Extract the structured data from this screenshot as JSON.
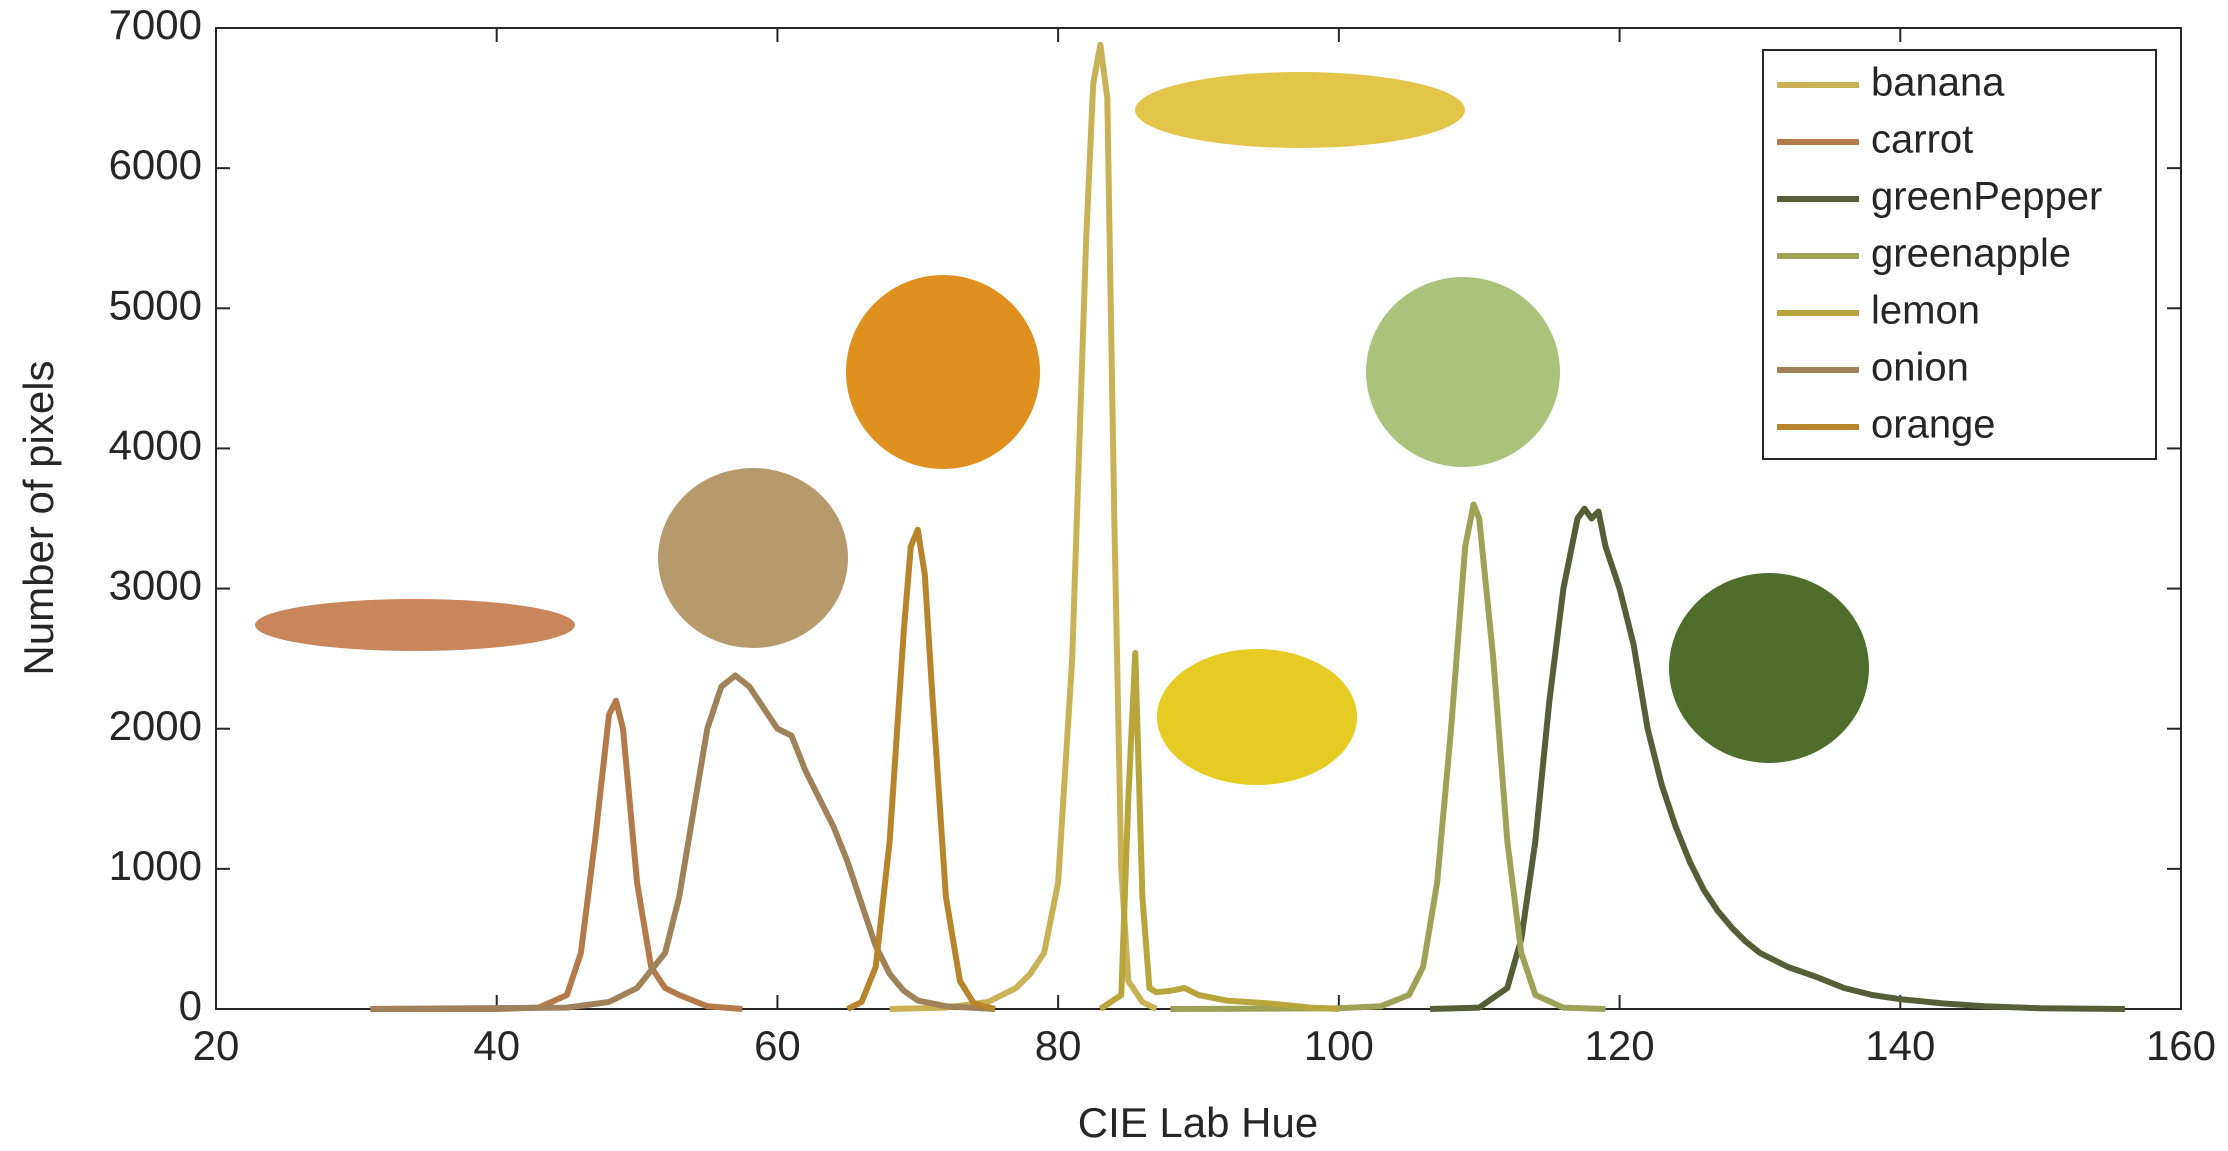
{
  "chart_data": {
    "type": "line",
    "x_label": "CIE Lab Hue",
    "y_label": "Number of pixels",
    "xlim": [
      20,
      160
    ],
    "xticks": [
      20,
      40,
      60,
      80,
      100,
      120,
      140,
      160
    ],
    "ylim": [
      0,
      7000
    ],
    "yticks": [
      0,
      1000,
      2000,
      3000,
      4000,
      5000,
      6000,
      7000
    ],
    "grid": false,
    "legend": "upper right",
    "series": [
      {
        "name": "banana",
        "color": "#c9b256",
        "x": [
          68,
          72,
          75,
          77,
          78,
          79,
          80,
          81,
          82,
          82.5,
          83,
          83.5,
          84,
          84.5,
          85,
          86,
          87
        ],
        "values": [
          0,
          10,
          50,
          150,
          250,
          400,
          900,
          2500,
          5500,
          6600,
          6880,
          6500,
          3500,
          1000,
          200,
          50,
          0
        ]
      },
      {
        "name": "carrot",
        "color": "#b47a4a",
        "x": [
          31,
          40,
          43,
          45,
          46,
          47,
          48,
          48.5,
          49,
          50,
          51,
          52,
          53,
          54,
          55,
          57.5
        ],
        "values": [
          0,
          0,
          10,
          100,
          400,
          1200,
          2100,
          2200,
          2000,
          900,
          300,
          150,
          100,
          60,
          20,
          0
        ]
      },
      {
        "name": "greenPepper",
        "color": "#555f37",
        "x": [
          106.5,
          110,
          112,
          113,
          114,
          115,
          116,
          117,
          117.5,
          118,
          118.5,
          119,
          120,
          121,
          122,
          123,
          124,
          125,
          126,
          127,
          128,
          129,
          130,
          132,
          134,
          136,
          138,
          140,
          143,
          146,
          150,
          156
        ],
        "values": [
          0,
          10,
          150,
          500,
          1200,
          2200,
          3000,
          3500,
          3570,
          3500,
          3550,
          3300,
          3000,
          2600,
          2000,
          1600,
          1300,
          1050,
          850,
          700,
          580,
          480,
          400,
          300,
          230,
          150,
          100,
          70,
          40,
          20,
          5,
          0
        ]
      },
      {
        "name": "greenapple",
        "color": "#9ea256",
        "x": [
          88,
          100,
          103,
          105,
          106,
          107,
          108,
          109,
          109.6,
          110,
          111,
          112,
          113,
          114,
          116,
          119
        ],
        "values": [
          0,
          5,
          20,
          100,
          300,
          900,
          2000,
          3300,
          3600,
          3500,
          2500,
          1200,
          400,
          100,
          10,
          0
        ]
      },
      {
        "name": "lemon",
        "color": "#b8a53c",
        "x": [
          83,
          84.5,
          85,
          85.5,
          86,
          86.5,
          87,
          88,
          89,
          90,
          92,
          95,
          98,
          100
        ],
        "values": [
          0,
          100,
          1500,
          2540,
          800,
          150,
          120,
          130,
          150,
          100,
          60,
          40,
          10,
          0
        ]
      },
      {
        "name": "onion",
        "color": "#a0825a",
        "x": [
          31,
          45,
          48,
          50,
          52,
          53,
          54,
          55,
          56,
          57,
          58,
          59,
          60,
          61,
          62,
          63,
          64,
          65,
          66,
          67,
          68,
          69,
          70,
          72,
          75.5
        ],
        "values": [
          0,
          10,
          50,
          150,
          400,
          800,
          1400,
          2000,
          2300,
          2380,
          2300,
          2150,
          2000,
          1950,
          1700,
          1500,
          1300,
          1050,
          750,
          450,
          250,
          130,
          60,
          20,
          0
        ]
      },
      {
        "name": "orange",
        "color": "#b8842c",
        "x": [
          65,
          66,
          67,
          68,
          69,
          69.5,
          70,
          70.5,
          71,
          72,
          73,
          74,
          75.5
        ],
        "values": [
          0,
          50,
          300,
          1200,
          2700,
          3300,
          3420,
          3100,
          2300,
          800,
          200,
          40,
          0
        ]
      }
    ]
  }
}
